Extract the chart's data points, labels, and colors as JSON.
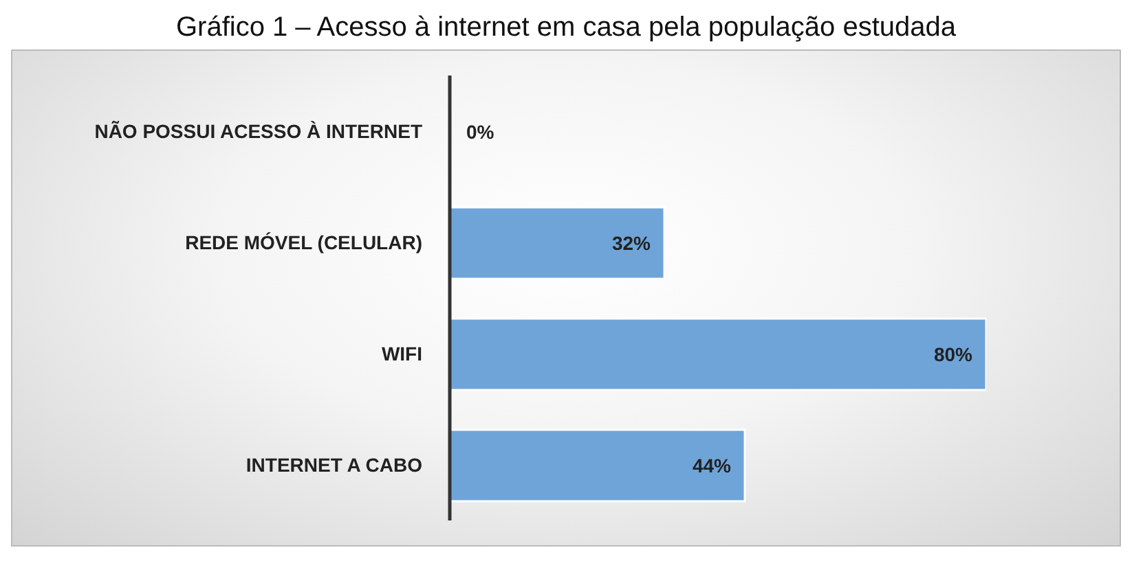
{
  "chart_data": {
    "type": "bar",
    "orientation": "horizontal",
    "title": "Gráfico 1 – Acesso à internet em casa pela população estudada",
    "categories": [
      "NÃO POSSUI ACESSO À INTERNET",
      "REDE MÓVEL (CELULAR)",
      "WIFI",
      "INTERNET A CABO"
    ],
    "values": [
      0,
      32,
      80,
      44
    ],
    "value_labels": [
      "0%",
      "32%",
      "80%",
      "44%"
    ],
    "color": "#6fa4d8",
    "tick_labels": "y",
    "grid": false
  }
}
